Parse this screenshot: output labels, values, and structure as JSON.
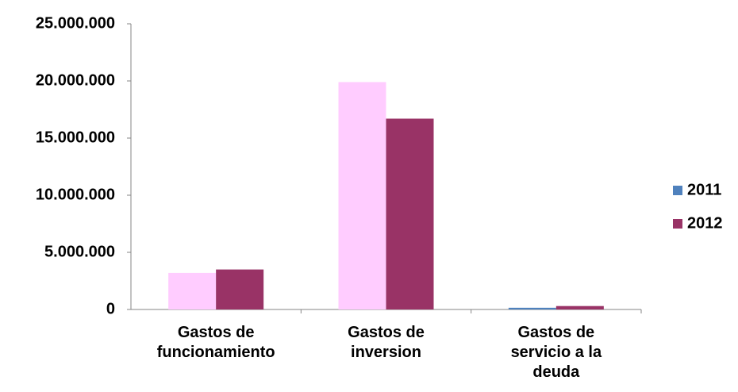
{
  "chart_data": {
    "type": "bar",
    "categories": [
      "Gastos de funcionamiento",
      "Gastos de inversion",
      "Gastos de servicio a la deuda"
    ],
    "series": [
      {
        "name": "2011",
        "color": "#4f81bd",
        "bar_colors": [
          "#ffccff",
          "#ffccff",
          "#4f81bd"
        ],
        "values": [
          3200000,
          19900000,
          150000
        ]
      },
      {
        "name": "2012",
        "color": "#993366",
        "values": [
          3500000,
          16700000,
          300000
        ]
      }
    ],
    "ylim": [
      0,
      25000000
    ],
    "yticks": [
      0,
      {
        "value": 5000000,
        "label": "5.000.000"
      },
      {
        "value": 10000000,
        "label": "10.000.000"
      },
      {
        "value": 15000000,
        "label": "15.000.000"
      },
      {
        "value": 20000000,
        "label": "20.000.000"
      },
      {
        "value": 25000000,
        "label": "25.000.000"
      }
    ],
    "grid": false,
    "legend": "right"
  }
}
